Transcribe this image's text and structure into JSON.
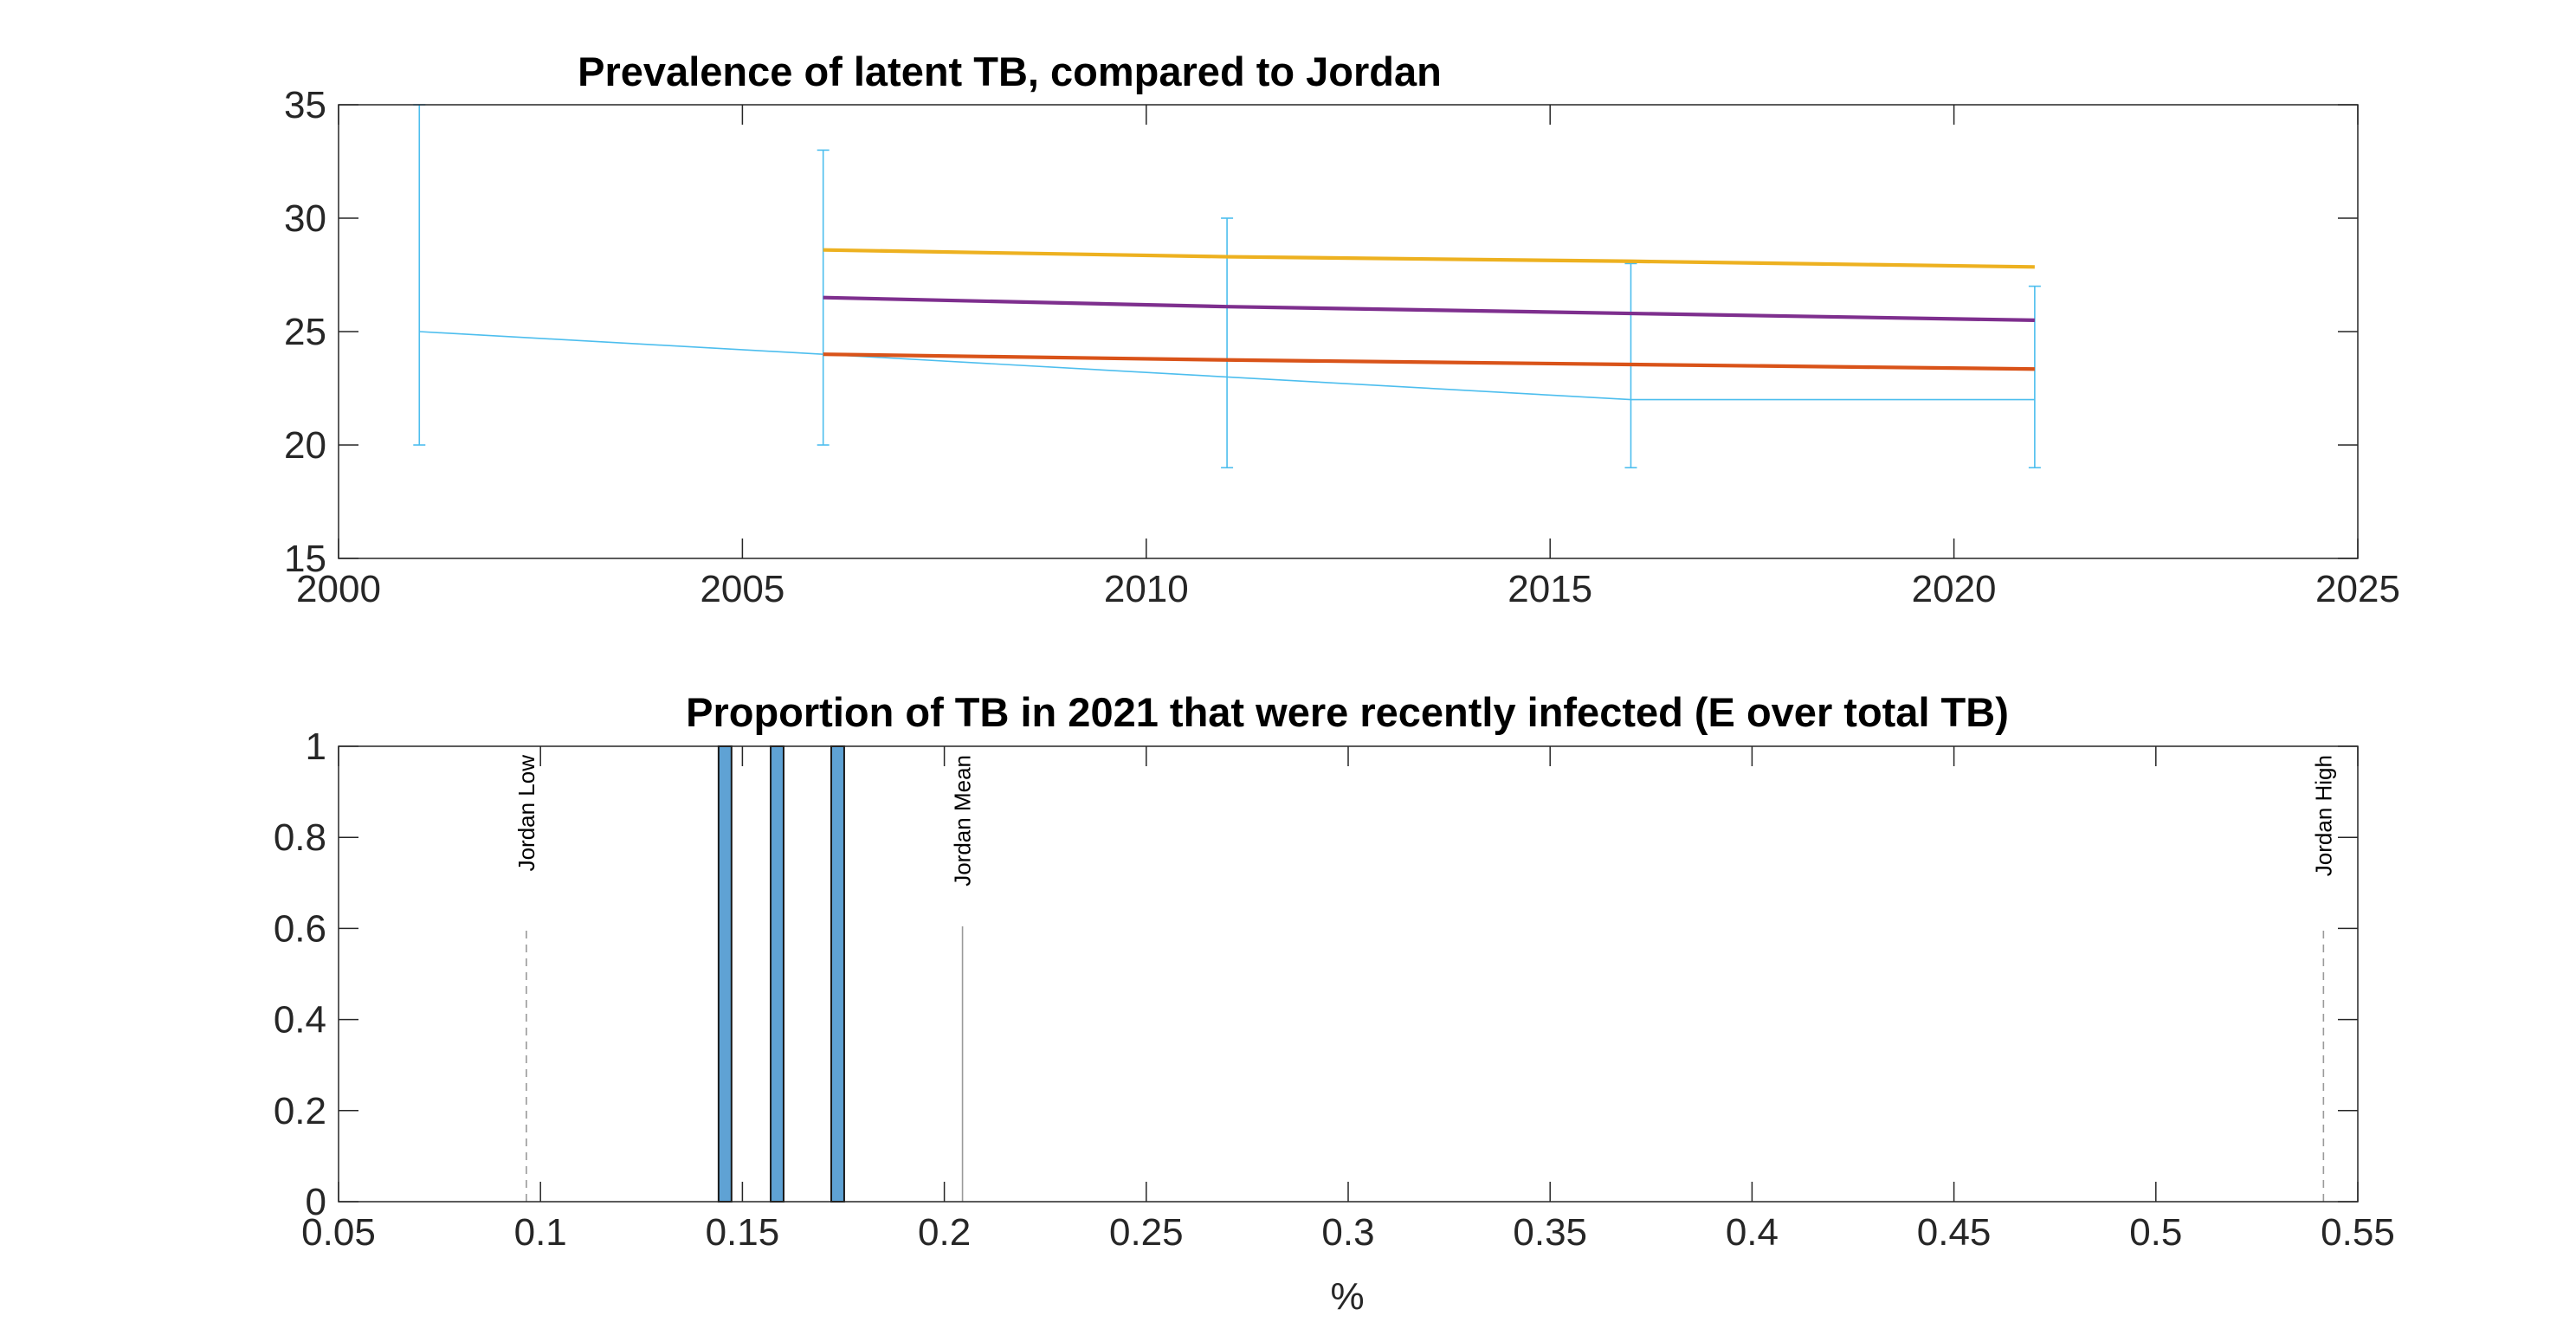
{
  "chart_data": [
    {
      "type": "line",
      "title": "Prevalence of latent TB, compared to Jordan",
      "xlabel": "",
      "ylabel": "",
      "xlim": [
        2000,
        2025
      ],
      "ylim": [
        15,
        35
      ],
      "xticks": [
        "2000",
        "2005",
        "2010",
        "2015",
        "2020",
        "2025"
      ],
      "yticks": [
        "15",
        "20",
        "25",
        "30",
        "35"
      ],
      "grid": false,
      "series": [
        {
          "color": "#4dbeee",
          "errorbar": true,
          "x": [
            2001,
            2006,
            2011,
            2016,
            2021
          ],
          "values": [
            25,
            24,
            23,
            22,
            22
          ],
          "lower": [
            20,
            20,
            19,
            19,
            19
          ],
          "upper": [
            35,
            33,
            30,
            28,
            27
          ]
        },
        {
          "color": "#edb120",
          "x": [
            2006,
            2011,
            2016,
            2021
          ],
          "values": [
            28.6,
            28.3,
            28.1,
            27.85
          ]
        },
        {
          "color": "#7e2f8e",
          "x": [
            2006,
            2011,
            2016,
            2021
          ],
          "values": [
            26.5,
            26.1,
            25.8,
            25.5
          ]
        },
        {
          "color": "#d95319",
          "x": [
            2006,
            2011,
            2016,
            2021
          ],
          "values": [
            24.0,
            23.75,
            23.55,
            23.35
          ]
        }
      ]
    },
    {
      "type": "bar",
      "title": "Proportion of TB in 2021 that were recently infected (E over total TB)",
      "xlabel": "%",
      "ylabel": "",
      "xlim": [
        0.05,
        0.55
      ],
      "ylim": [
        0,
        1
      ],
      "xticks": [
        "0.05",
        "0.1",
        "0.15",
        "0.2",
        "0.25",
        "0.3",
        "0.35",
        "0.4",
        "0.45",
        "0.5",
        "0.55"
      ],
      "yticks": [
        "0",
        "0.2",
        "0.4",
        "0.6",
        "0.8",
        "1"
      ],
      "grid": false,
      "bar_color": "#5fa2d4",
      "bar_width": 0.0032,
      "bars": [
        {
          "x": 0.1457,
          "value": 1
        },
        {
          "x": 0.1586,
          "value": 1
        },
        {
          "x": 0.1736,
          "value": 1
        }
      ],
      "reference_lines": [
        {
          "label": "Jordan Low",
          "x": 0.0965,
          "style": "dashed"
        },
        {
          "label": "Jordan Mean",
          "x": 0.2045,
          "style": "solid"
        },
        {
          "label": "Jordan High",
          "x": 0.5415,
          "style": "dashed"
        }
      ]
    }
  ]
}
